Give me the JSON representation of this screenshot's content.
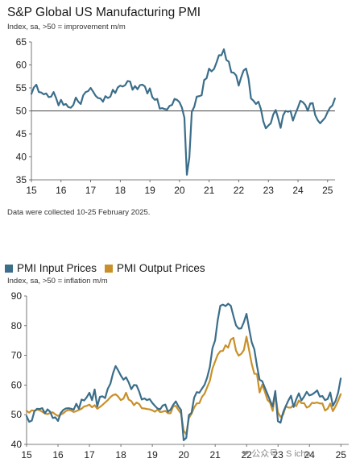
{
  "chart_data": [
    {
      "type": "line",
      "title": "S&P Global US Manufacturing PMI",
      "subtitle": "Index, sa, >50 = improvement m/m",
      "note": "Data were collected 10-25 February 2025.",
      "xticks": [
        "15",
        "16",
        "17",
        "18",
        "19",
        "20",
        "21",
        "22",
        "23",
        "24",
        "25"
      ],
      "yticks": [
        35,
        40,
        45,
        50,
        55,
        60,
        65
      ],
      "xlim": [
        2015.0,
        2025.25
      ],
      "ylim": [
        35,
        65
      ],
      "reference_line": 50,
      "colors": {
        "line": "#3b6e8a",
        "ref": "#444444"
      },
      "series": [
        {
          "x_start": 2015.0,
          "x_step": 0.0833,
          "values": [
            53.7,
            55.1,
            55.7,
            54.1,
            54.0,
            53.6,
            53.8,
            53.0,
            53.1,
            54.1,
            52.8,
            51.2,
            52.4,
            51.3,
            51.5,
            50.8,
            50.7,
            51.3,
            52.9,
            52.0,
            51.5,
            53.4,
            54.1,
            54.3,
            55.0,
            54.2,
            53.3,
            52.8,
            52.7,
            52.0,
            53.2,
            52.8,
            53.1,
            54.6,
            53.9,
            55.1,
            55.5,
            55.3,
            55.6,
            56.5,
            56.4,
            54.6,
            55.4,
            54.7,
            55.6,
            55.7,
            55.3,
            53.8,
            54.9,
            53.0,
            52.4,
            52.6,
            50.5,
            50.6,
            50.4,
            50.3,
            51.1,
            51.3,
            52.6,
            52.4,
            51.9,
            50.7,
            48.5,
            36.1,
            39.8,
            49.8,
            50.9,
            53.1,
            53.2,
            53.4,
            56.7,
            57.1,
            59.2,
            58.6,
            59.1,
            60.5,
            62.1,
            62.1,
            63.4,
            61.1,
            60.7,
            58.4,
            58.3,
            57.7,
            55.5,
            57.3,
            58.8,
            59.2,
            57.0,
            52.7,
            52.2,
            51.5,
            52.0,
            50.4,
            47.7,
            46.2,
            46.8,
            47.3,
            49.2,
            50.2,
            48.4,
            46.3,
            49.0,
            50.0,
            49.8,
            50.0,
            47.9,
            49.4,
            50.7,
            52.2,
            51.9,
            51.3,
            50.0,
            51.6,
            51.7,
            49.1,
            48.0,
            47.3,
            47.9,
            48.5,
            49.7,
            50.7,
            51.2,
            52.7
          ]
        }
      ]
    },
    {
      "type": "line",
      "subtitle": "Index, sa, >50 = inflation m/m",
      "xticks": [
        "15",
        "16",
        "17",
        "18",
        "19",
        "20",
        "21",
        "22",
        "23",
        "24",
        "25"
      ],
      "yticks": [
        40,
        50,
        60,
        70,
        80,
        90
      ],
      "xlim": [
        2015.0,
        2025.25
      ],
      "ylim": [
        40,
        90
      ],
      "series": [
        {
          "name": "PMI Input Prices",
          "color": "#3b6e8a",
          "x_start": 2015.0,
          "x_step": 0.0833,
          "values": [
            49.5,
            47.6,
            48.0,
            51.2,
            52.0,
            51.9,
            52.2,
            50.5,
            51.8,
            51.0,
            48.9,
            49.1,
            47.9,
            50.5,
            51.6,
            52.1,
            52.2,
            52.0,
            51.7,
            53.7,
            52.0,
            55.1,
            54.8,
            55.9,
            57.4,
            54.9,
            58.5,
            52.8,
            56.0,
            56.2,
            55.6,
            58.7,
            60.4,
            63.9,
            66.4,
            64.9,
            63.2,
            61.8,
            62.6,
            60.9,
            58.6,
            60.0,
            59.9,
            57.8,
            55.1,
            55.5,
            54.9,
            55.3,
            54.0,
            53.0,
            52.1,
            51.8,
            53.1,
            53.4,
            51.0,
            51.7,
            53.3,
            54.5,
            52.8,
            51.6,
            41.4,
            42.2,
            49.9,
            50.6,
            55.7,
            57.6,
            57.4,
            58.8,
            60.1,
            62.6,
            66.1,
            72.4,
            75.0,
            81.8,
            86.7,
            87.1,
            86.6,
            87.4,
            86.7,
            83.3,
            80.1,
            79.0,
            79.1,
            81.2,
            84.0,
            79.0,
            74.4,
            72.0,
            66.5,
            61.8,
            61.3,
            59.1,
            57.0,
            54.8,
            52.8,
            58.0,
            47.8,
            47.3,
            50.8,
            52.9,
            54.8,
            56.4,
            52.6,
            55.2,
            57.2,
            54.8,
            56.1,
            57.7,
            56.5,
            56.8,
            57.4,
            58.2,
            56.1,
            56.3,
            54.9,
            55.3,
            57.5,
            53.0,
            54.6,
            57.4,
            62.2
          ]
        },
        {
          "name": "PMI Output Prices",
          "color": "#c9902a",
          "x_start": 2015.0,
          "x_step": 0.0833,
          "values": [
            51.3,
            50.7,
            51.5,
            51.3,
            51.7,
            51.5,
            51.0,
            50.4,
            50.2,
            50.6,
            50.8,
            50.1,
            49.6,
            50.0,
            50.5,
            51.2,
            51.6,
            51.4,
            50.9,
            51.2,
            51.6,
            52.0,
            52.8,
            53.0,
            53.4,
            52.5,
            53.2,
            52.0,
            52.6,
            53.3,
            54.1,
            54.9,
            55.9,
            56.6,
            56.9,
            56.1,
            54.9,
            55.4,
            57.4,
            55.1,
            54.6,
            53.2,
            54.1,
            53.6,
            52.2,
            52.1,
            51.9,
            51.8,
            51.5,
            51.0,
            51.7,
            50.9,
            51.0,
            51.3,
            50.5,
            50.5,
            52.8,
            53.0,
            51.6,
            50.4,
            44.6,
            43.4,
            48.9,
            50.3,
            52.4,
            53.8,
            53.9,
            56.0,
            57.1,
            59.3,
            61.4,
            65.5,
            67.9,
            70.2,
            71.4,
            71.5,
            73.4,
            72.6,
            75.3,
            75.9,
            71.6,
            69.9,
            70.5,
            71.8,
            76.3,
            71.7,
            67.1,
            63.8,
            63.7,
            57.5,
            60.1,
            57.8,
            55.0,
            54.1,
            51.3,
            57.3,
            50.8,
            49.3,
            50.0,
            52.8,
            52.4,
            52.4,
            53.4,
            52.9,
            54.8,
            53.9,
            53.9,
            52.4,
            52.8,
            54.0,
            53.9,
            54.1,
            53.8,
            53.8,
            51.4,
            52.0,
            53.8,
            51.2,
            52.8,
            54.7,
            56.9
          ]
        }
      ]
    }
  ],
  "watermark": "❤ 公众号 · S  icha"
}
